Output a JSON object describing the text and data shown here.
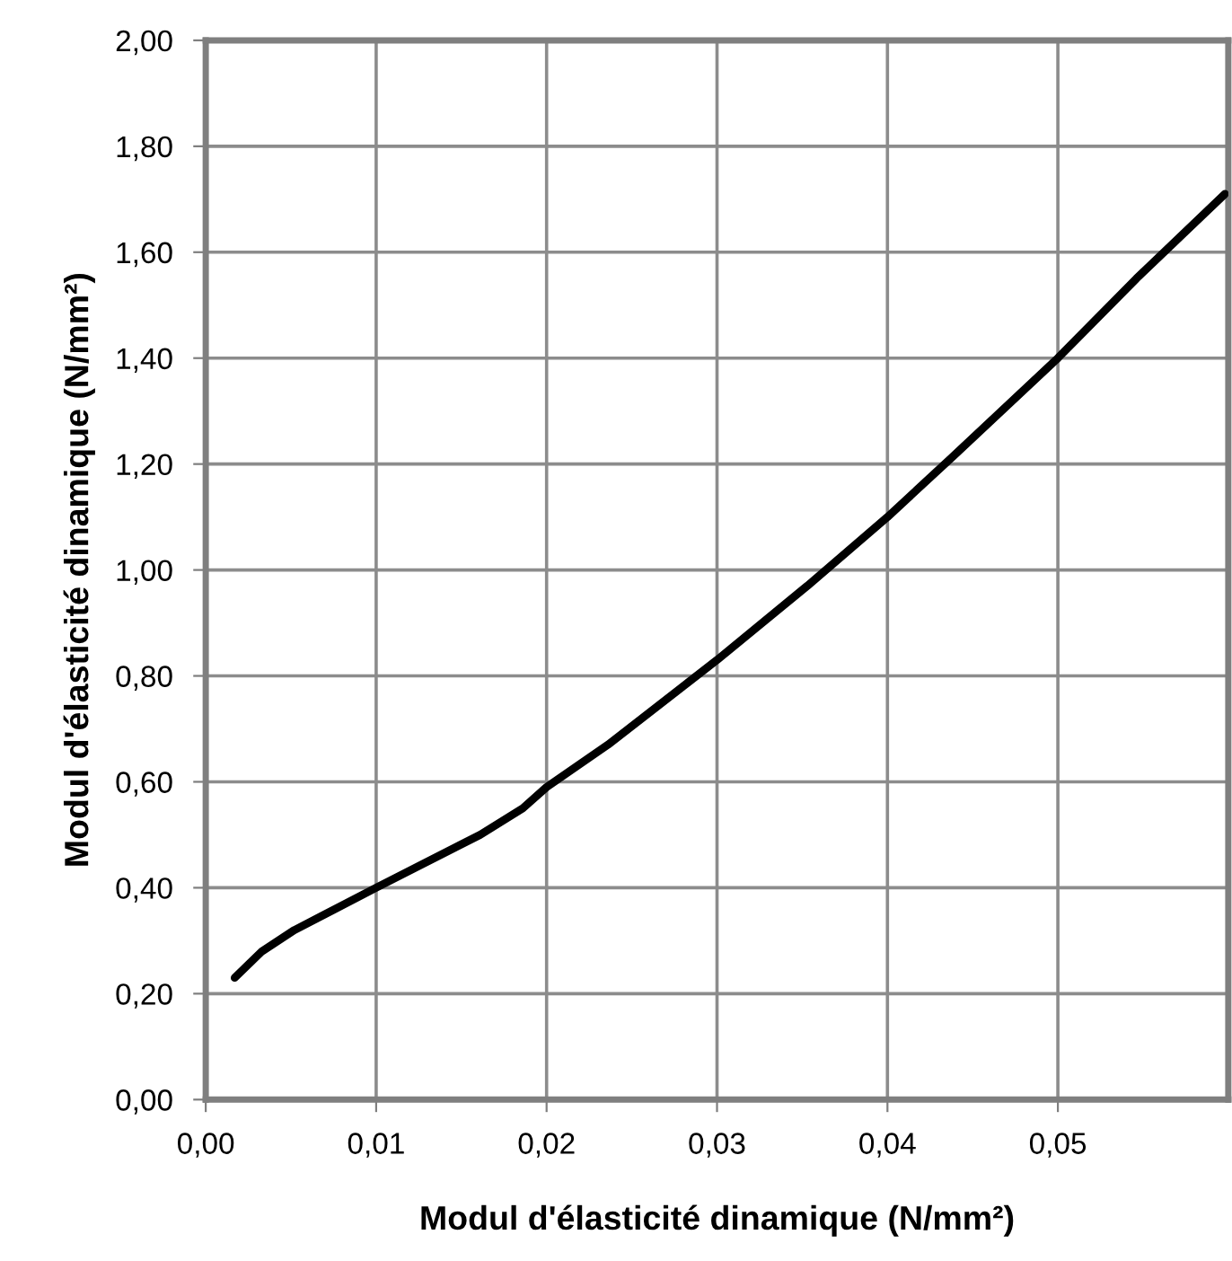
{
  "chart_data": {
    "type": "line",
    "xlabel": "Modul d'élasticité dinamique (N/mm²)",
    "ylabel": "Modul d'élasticité dinamique (N/mm²)",
    "x": [
      0.0017,
      0.0033,
      0.0052,
      0.01,
      0.0161,
      0.0186,
      0.02,
      0.0236,
      0.03,
      0.0353,
      0.04,
      0.0437,
      0.05,
      0.0546,
      0.0598
    ],
    "series": [
      {
        "color": "#000000",
        "values": [
          0.23,
          0.28,
          0.32,
          0.4,
          0.5,
          0.55,
          0.59,
          0.67,
          0.83,
          0.97,
          1.1,
          1.21,
          1.4,
          1.55,
          1.71
        ]
      }
    ],
    "xlim": [
      0,
      0.06
    ],
    "xticks": [
      {
        "value": 0,
        "label": "0,00"
      },
      {
        "value": 0.01,
        "label": "0,01"
      },
      {
        "value": 0.02,
        "label": "0,02"
      },
      {
        "value": 0.03,
        "label": "0,03"
      },
      {
        "value": 0.04,
        "label": "0,04"
      },
      {
        "value": 0.05,
        "label": "0,05"
      }
    ],
    "ylim": [
      0,
      2
    ],
    "yticks": [
      {
        "value": 0,
        "label": "0,00"
      },
      {
        "value": 0.2,
        "label": "0,20"
      },
      {
        "value": 0.4,
        "label": "0,40"
      },
      {
        "value": 0.6,
        "label": "0,60"
      },
      {
        "value": 0.8,
        "label": "0,80"
      },
      {
        "value": 1.0,
        "label": "1,00"
      },
      {
        "value": 1.2,
        "label": "1,20"
      },
      {
        "value": 1.4,
        "label": "1,40"
      },
      {
        "value": 1.6,
        "label": "1,60"
      },
      {
        "value": 1.8,
        "label": "1,80"
      },
      {
        "value": 2.0,
        "label": "2,00"
      }
    ],
    "grid": true,
    "marker": "none",
    "line_style": "solid"
  }
}
